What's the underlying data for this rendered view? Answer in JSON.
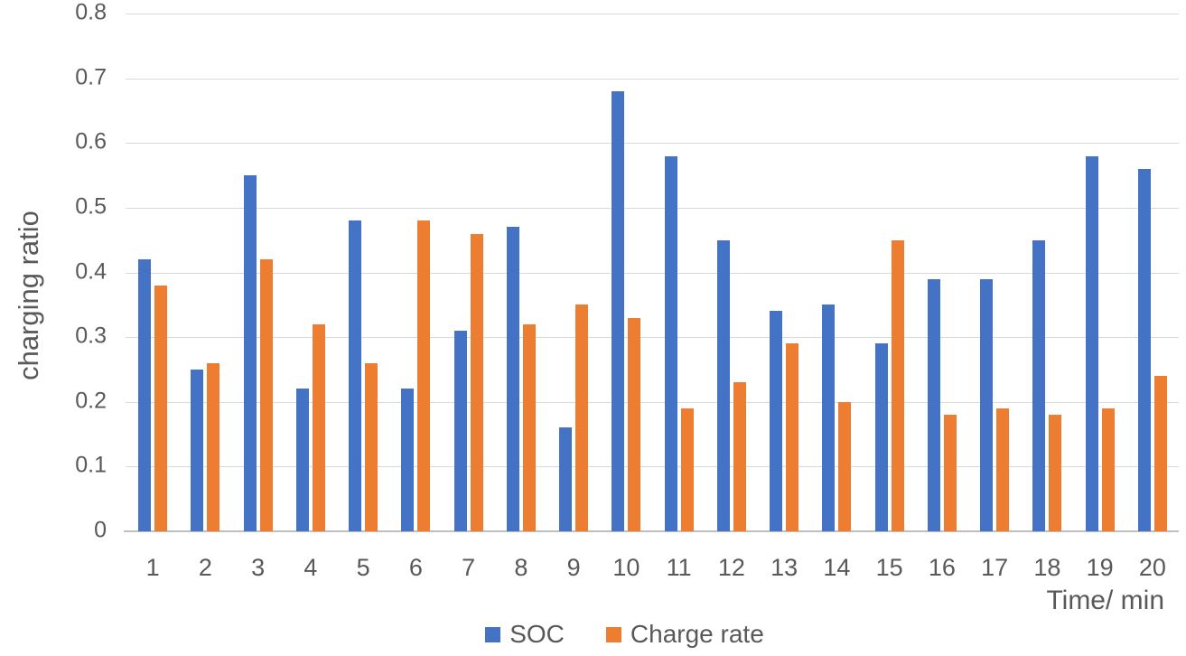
{
  "chart_data": {
    "type": "bar",
    "title": "",
    "categories": [
      "1",
      "2",
      "3",
      "4",
      "5",
      "6",
      "7",
      "8",
      "9",
      "10",
      "11",
      "12",
      "13",
      "14",
      "15",
      "16",
      "17",
      "18",
      "19",
      "20"
    ],
    "series": [
      {
        "name": "SOC",
        "color": "#4472C4",
        "values": [
          0.42,
          0.25,
          0.55,
          0.22,
          0.48,
          0.22,
          0.31,
          0.47,
          0.16,
          0.68,
          0.58,
          0.45,
          0.34,
          0.35,
          0.29,
          0.39,
          0.39,
          0.45,
          0.58,
          0.56
        ]
      },
      {
        "name": "Charge rate",
        "color": "#ED7D31",
        "values": [
          0.38,
          0.26,
          0.42,
          0.32,
          0.26,
          0.48,
          0.46,
          0.32,
          0.35,
          0.33,
          0.19,
          0.23,
          0.29,
          0.2,
          0.45,
          0.18,
          0.19,
          0.18,
          0.19,
          0.24
        ]
      }
    ],
    "xlabel": "Time/ min",
    "ylabel": "charging ratio",
    "ylim": [
      0,
      0.8
    ],
    "yticks": [
      "0",
      "0.1",
      "0.2",
      "0.3",
      "0.4",
      "0.5",
      "0.6",
      "0.7",
      "0.8"
    ],
    "grid": true,
    "legend_position": "bottom"
  },
  "colors": {
    "soc": "#4472C4",
    "charge_rate": "#ED7D31",
    "gridline": "#d9d9d9",
    "axis_line": "#bfbfbf",
    "text": "#595959",
    "background": "#ffffff"
  }
}
